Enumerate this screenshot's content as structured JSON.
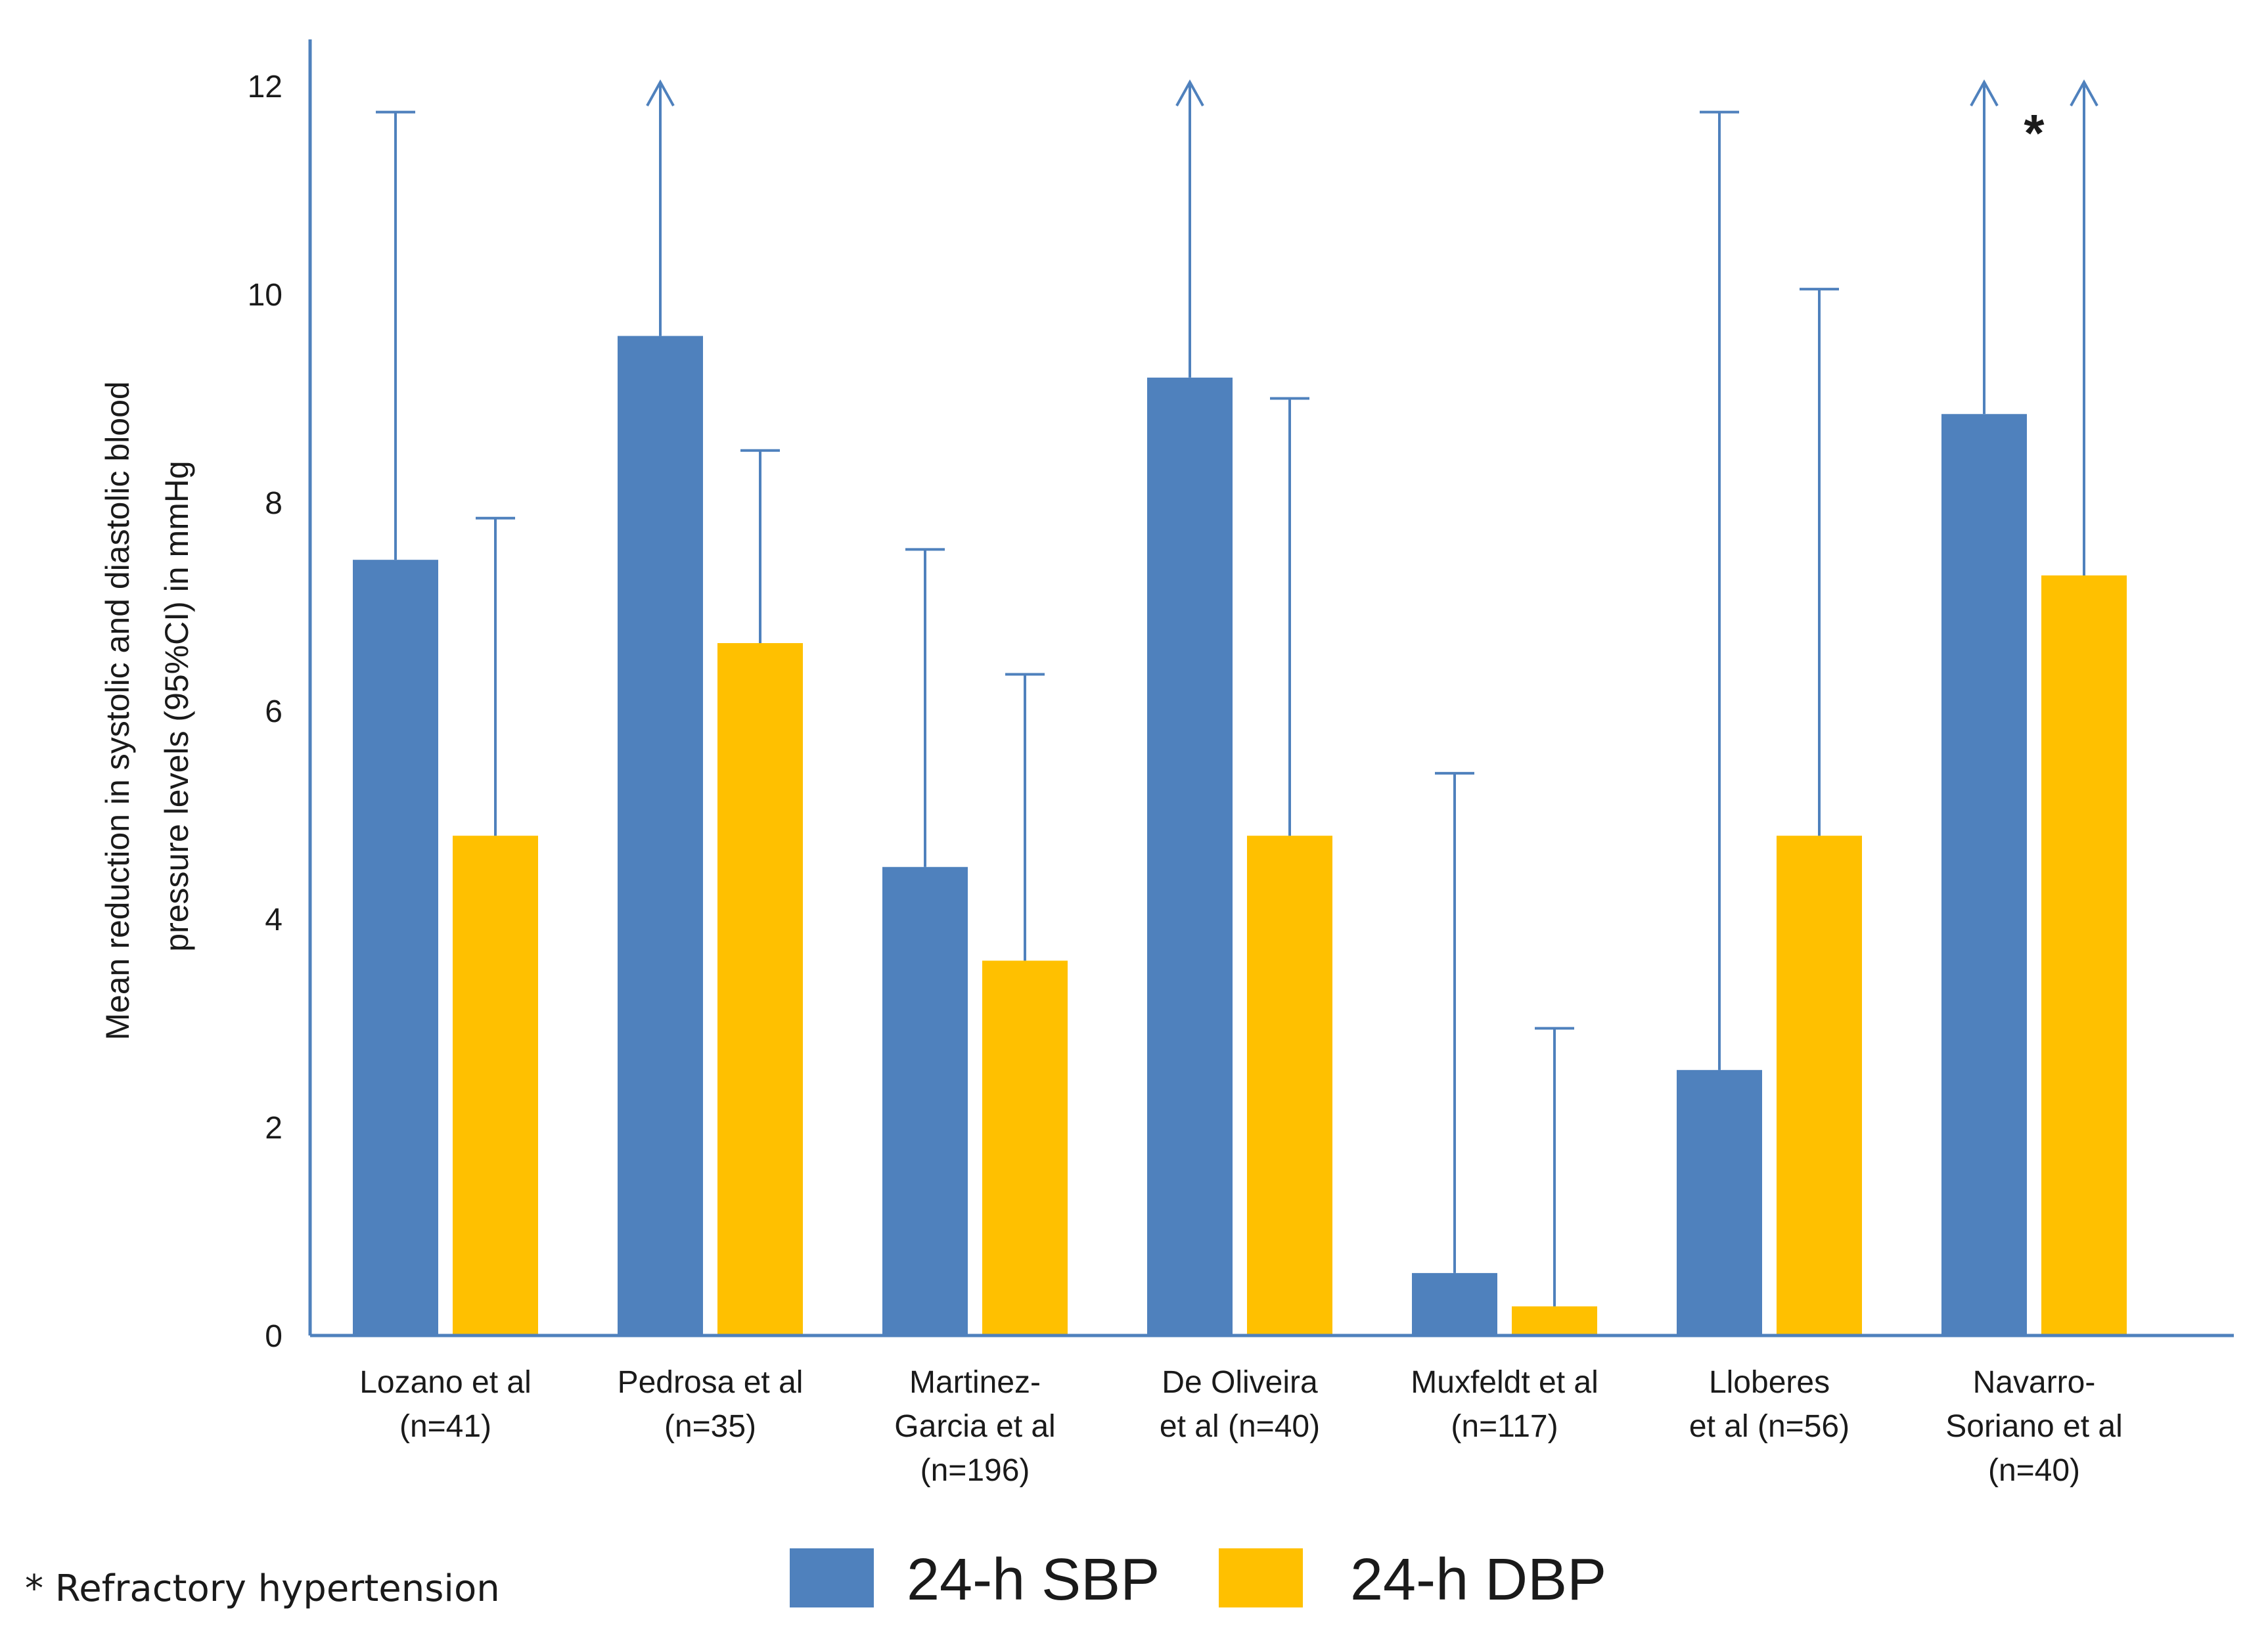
{
  "chart_data": {
    "type": "bar",
    "ylabel_lines": [
      "Mean reduction in systolic and diastolic blood",
      "pressure levels (95%CI) in mmHg"
    ],
    "ylim": [
      0,
      12
    ],
    "yticks": [
      0,
      2,
      4,
      6,
      8,
      10,
      12
    ],
    "categories": [
      [
        "Lozano et al",
        "(n=41)"
      ],
      [
        "Pedrosa et al",
        "(n=35)"
      ],
      [
        "Martinez-",
        "Garcia et al",
        "(n=196)"
      ],
      [
        "De Oliveira",
        "et al (n=40)"
      ],
      [
        "Muxfeldt et al",
        "(n=117)"
      ],
      [
        "Lloberes",
        "et al (n=56)"
      ],
      [
        "Navarro-",
        "Soriano et al",
        "(n=40)"
      ]
    ],
    "series": [
      {
        "name": "24-h SBP",
        "color": "#4f81bd",
        "values": [
          7.45,
          9.6,
          4.5,
          9.2,
          0.6,
          2.55,
          8.85
        ],
        "upper_ci": [
          11.75,
          12.0,
          7.55,
          12.0,
          5.4,
          11.75,
          12.0
        ],
        "ci_extends_beyond_axis": [
          false,
          true,
          false,
          true,
          false,
          false,
          true
        ]
      },
      {
        "name": "24-h DBP",
        "color": "#ffc000",
        "values": [
          4.8,
          6.65,
          3.6,
          4.8,
          0.28,
          4.8,
          7.3
        ],
        "upper_ci": [
          7.85,
          8.5,
          6.35,
          9.0,
          2.95,
          10.05,
          12.0
        ],
        "ci_extends_beyond_axis": [
          false,
          false,
          false,
          false,
          false,
          false,
          true
        ]
      }
    ],
    "annotations": [
      {
        "category_index": 6,
        "text": "*"
      }
    ],
    "footnote": "* Refractory hypertension",
    "error_bar_color": "#4f81bd",
    "axis_color": "#4f81bd"
  }
}
